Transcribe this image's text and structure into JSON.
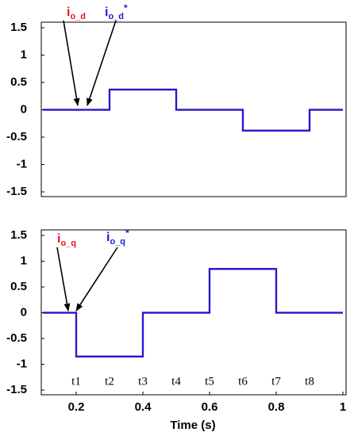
{
  "chart_data": [
    {
      "type": "line",
      "xlim": [
        0.1,
        1.0
      ],
      "ylim": [
        -1.5,
        1.5
      ],
      "yticks": [
        1.5,
        1,
        0.5,
        0,
        -0.5,
        -1,
        -1.5
      ],
      "grid": false,
      "x": [
        0.1,
        0.3,
        0.3,
        0.5,
        0.5,
        0.7,
        0.7,
        0.9,
        0.9,
        1.0
      ],
      "series": [
        {
          "name": "i",
          "subscript": "o_d",
          "color": "#e8141b",
          "values": [
            0,
            0,
            0.37,
            0.37,
            0,
            0,
            -0.38,
            -0.38,
            0,
            0
          ]
        },
        {
          "name": "i",
          "subscript": "o_d",
          "superscript": "*",
          "color": "#1a1adb",
          "values": [
            0,
            0,
            0.37,
            0.37,
            0,
            0,
            -0.38,
            -0.38,
            0,
            0
          ]
        }
      ]
    },
    {
      "type": "line",
      "xlim": [
        0.1,
        1.0
      ],
      "ylim": [
        -1.5,
        1.5
      ],
      "yticks": [
        1.5,
        1,
        0.5,
        0,
        -0.5,
        -1,
        -1.5
      ],
      "xticks": [
        0.2,
        0.4,
        0.6,
        0.8,
        1
      ],
      "xlabel": "Time (s)",
      "grid": false,
      "x": [
        0.1,
        0.2,
        0.2,
        0.4,
        0.4,
        0.6,
        0.6,
        0.8,
        0.8,
        1.0
      ],
      "series": [
        {
          "name": "i",
          "subscript": "o_q",
          "color": "#e8141b",
          "values": [
            0,
            0,
            -0.85,
            -0.85,
            0,
            0,
            0.85,
            0.85,
            0,
            0
          ]
        },
        {
          "name": "i",
          "subscript": "o_q",
          "superscript": "*",
          "color": "#1a1adb",
          "values": [
            0,
            0,
            -0.85,
            -0.85,
            0,
            0,
            0.85,
            0.85,
            0,
            0
          ]
        }
      ],
      "annotations": [
        {
          "text": "t1",
          "x": 0.2
        },
        {
          "text": "t2",
          "x": 0.3
        },
        {
          "text": "t3",
          "x": 0.4
        },
        {
          "text": "t4",
          "x": 0.5
        },
        {
          "text": "t5",
          "x": 0.6
        },
        {
          "text": "t6",
          "x": 0.7
        },
        {
          "text": "t7",
          "x": 0.8
        },
        {
          "text": "t8",
          "x": 0.9
        }
      ]
    }
  ]
}
